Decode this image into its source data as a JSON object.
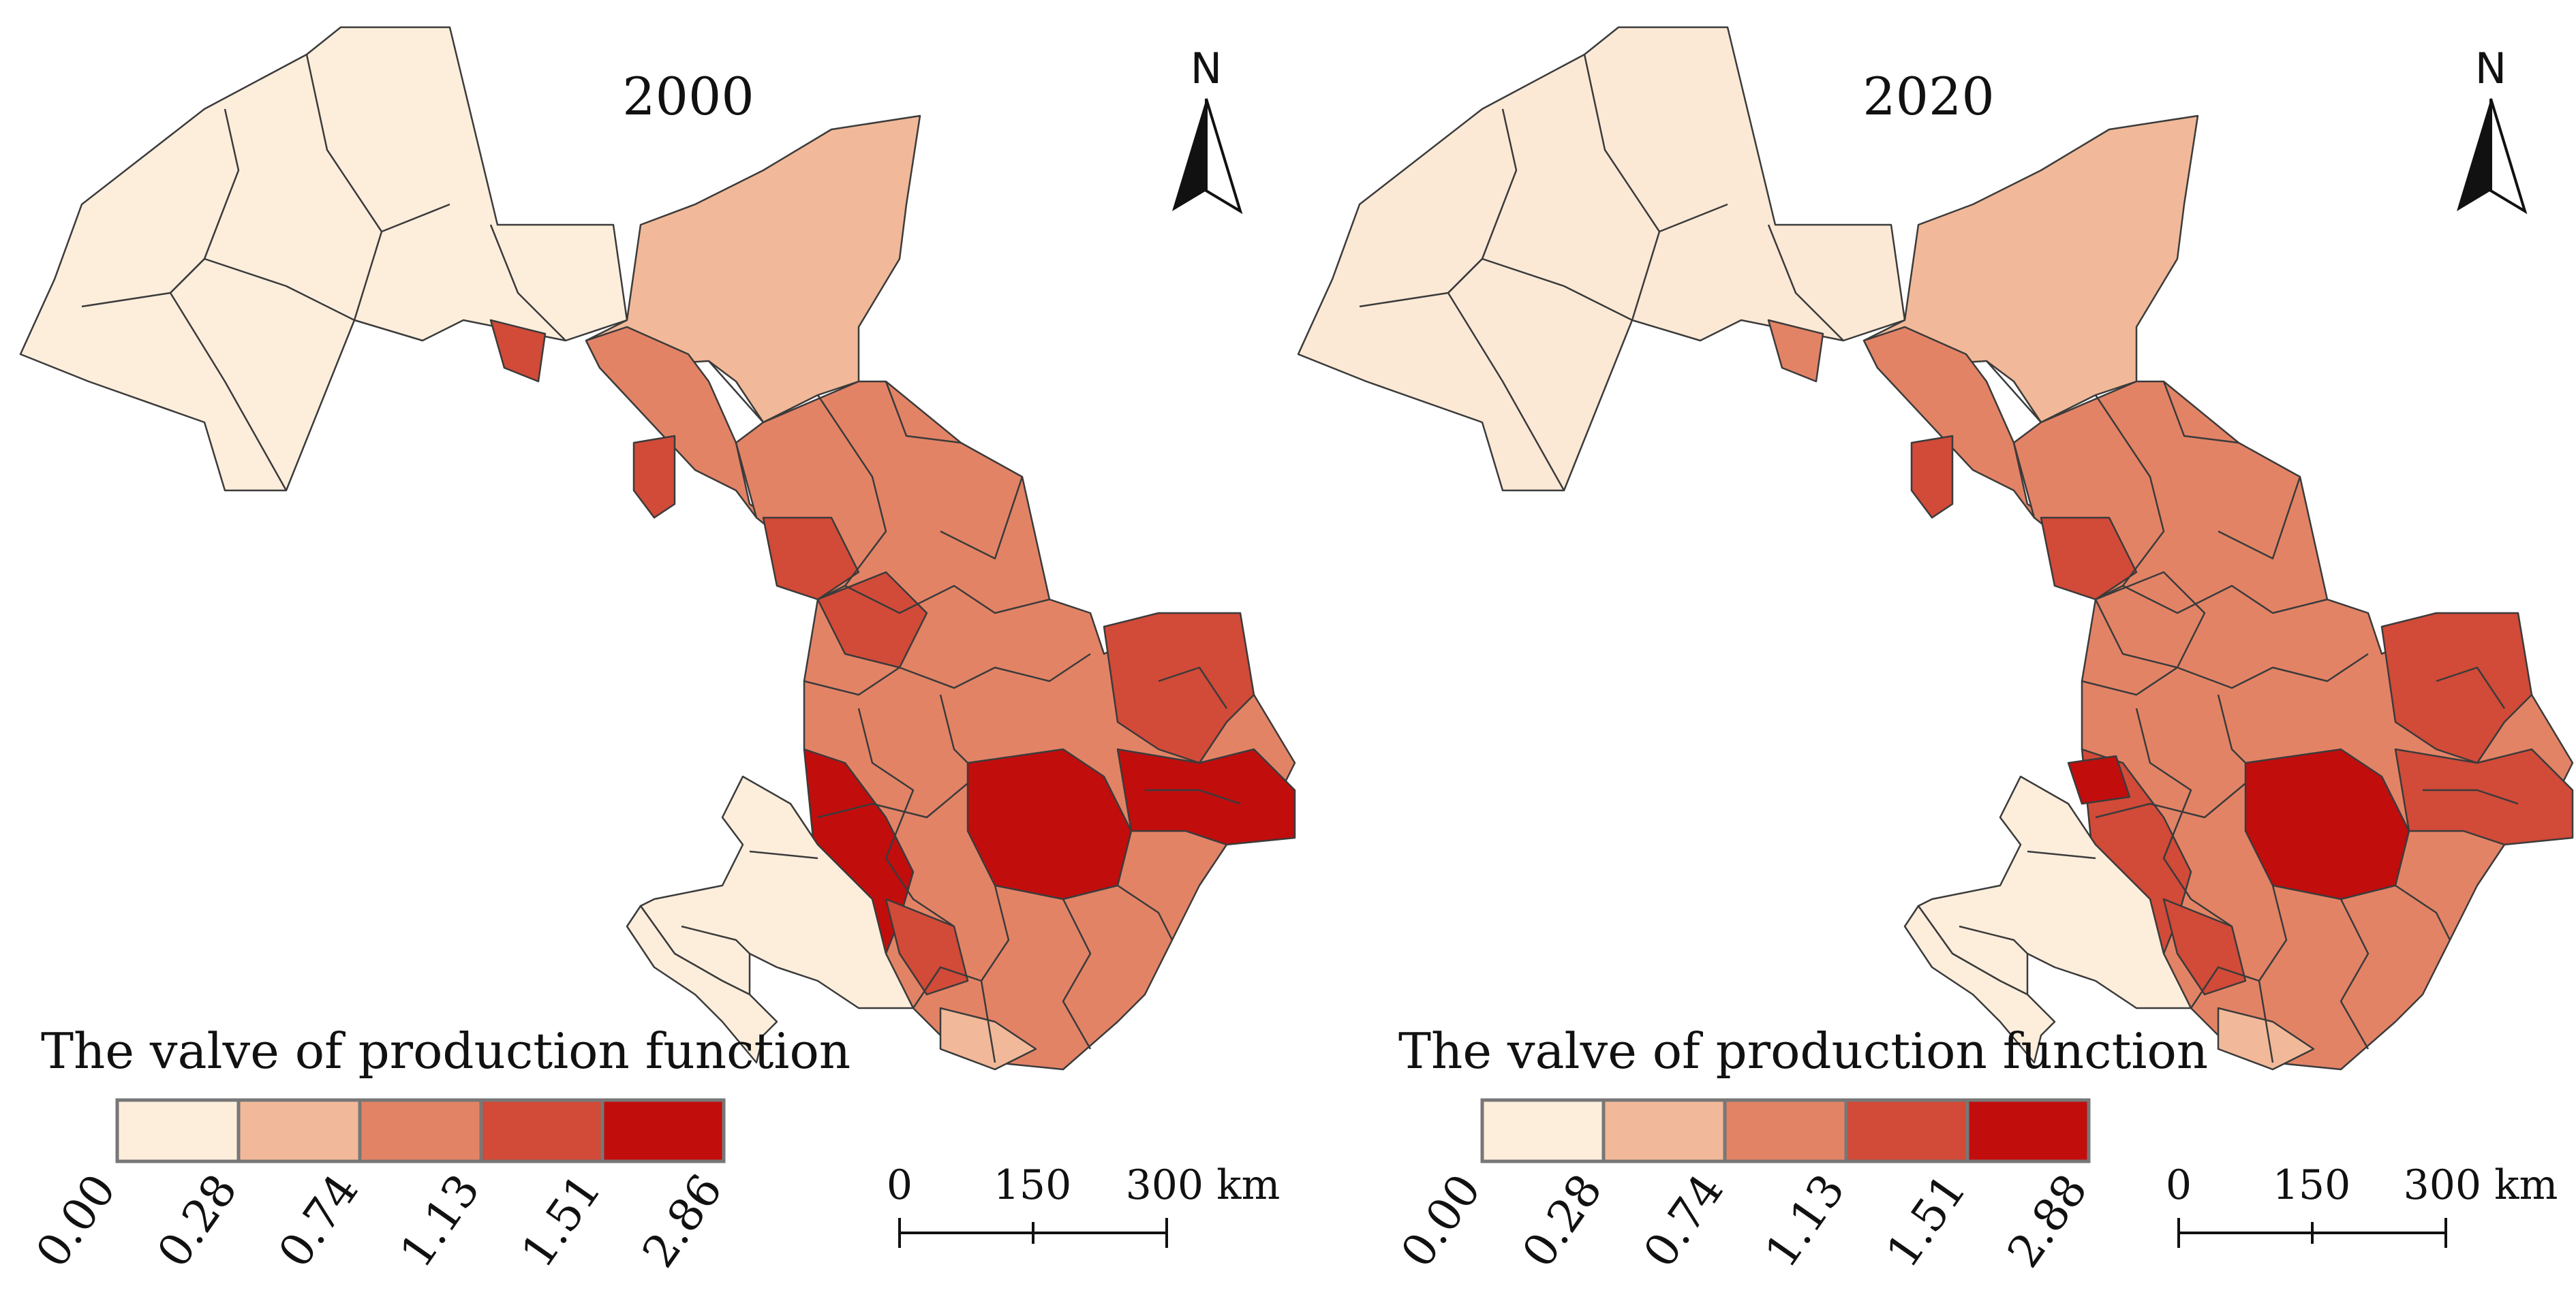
{
  "panels": [
    {
      "year": "2000",
      "north_label": "N",
      "legend": {
        "title": "The valve of production function",
        "breaks": [
          "0.00",
          "0.28",
          "0.74",
          "1.13",
          "1.51",
          "2.86"
        ]
      },
      "scalebar": {
        "labels": [
          "0",
          "150",
          "300 km"
        ]
      }
    },
    {
      "year": "2020",
      "north_label": "N",
      "legend": {
        "title": "The valve of production function",
        "breaks": [
          "0.00",
          "0.28",
          "0.74",
          "1.13",
          "1.51",
          "2.88"
        ]
      },
      "scalebar": {
        "labels": [
          "0",
          "150",
          "300 km"
        ]
      }
    }
  ],
  "colors": {
    "class_1": "#fdeedc",
    "class_2": "#f1b999",
    "class_3": "#e38366",
    "class_4": "#d24a38",
    "class_5": "#c20d0d",
    "boundary": "#3b3b3b",
    "background": "#ffffff"
  }
}
